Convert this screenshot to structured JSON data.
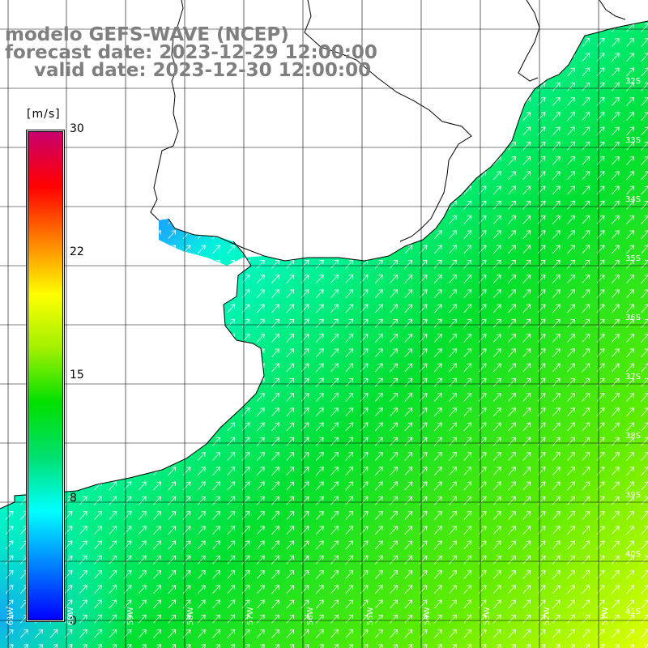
{
  "title": {
    "model": "modelo GEFS-WAVE (NCEP)",
    "forecast": "forecast date: 2023-12-29 12:00:00",
    "valid": "valid date: 2023-12-30 12:00:00"
  },
  "colorbar": {
    "unit": "[m/s]",
    "min": 0,
    "max": 30,
    "ticks": [
      "30",
      "22",
      "15",
      "8",
      "0"
    ],
    "colors": [
      "#0000ff",
      "#0080ff",
      "#00ffff",
      "#00e070",
      "#00e000",
      "#a0f000",
      "#ffff00",
      "#ff8000",
      "#ff0000",
      "#c8006e"
    ]
  },
  "map": {
    "lat_labels": [
      "32S",
      "33S",
      "34S",
      "35S",
      "36S",
      "37S",
      "38S",
      "39S",
      "40S",
      "41S"
    ],
    "lon_labels": [
      "61W",
      "60W",
      "59W",
      "58W",
      "57W",
      "56W",
      "55W",
      "54W",
      "53W",
      "52W",
      "51W"
    ],
    "lat_range": [
      -41.3,
      -31.0
    ],
    "lon_range": [
      -61.5,
      -50.5
    ],
    "wind_direction": "southwest-to-northeast",
    "colors": {
      "land": "#ffffff",
      "coast": "#000000",
      "grid": "#000000",
      "arrow": "#ffffff",
      "low_speed": "#1e78ff",
      "mid_speed": "#00ffff",
      "high_speed": "#00e000",
      "peak_speed": "#e0ff00"
    }
  }
}
